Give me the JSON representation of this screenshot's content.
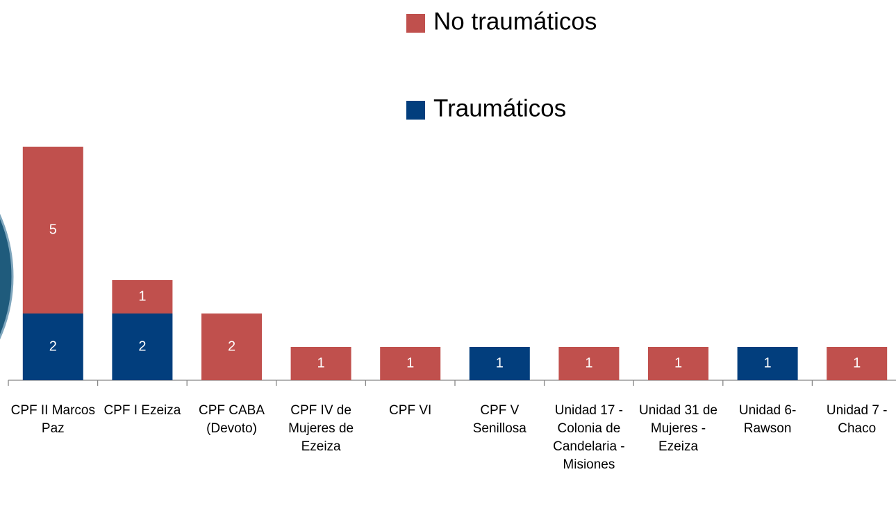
{
  "chart_data": {
    "type": "stacked_bar",
    "categories": [
      "CPF II Marcos Paz",
      "CPF I Ezeiza",
      "CPF CABA (Devoto)",
      "CPF IV de Mujeres de Ezeiza",
      "CPF VI",
      "CPF V Senillosa",
      "Unidad 17 - Colonia de Candelaria - Misiones",
      "Unidad 31 de Mujeres - Ezeiza",
      "Unidad 6- Rawson",
      "Unidad 7 - Chaco"
    ],
    "series": [
      {
        "name": "Traumáticos",
        "color": "#023e7d",
        "values": [
          2,
          2,
          null,
          null,
          null,
          1,
          null,
          null,
          1,
          null
        ]
      },
      {
        "name": "No traumáticos",
        "color": "#c0504d",
        "values": [
          5,
          1,
          2,
          1,
          1,
          null,
          1,
          1,
          null,
          1
        ]
      }
    ],
    "legend": "top-right"
  }
}
